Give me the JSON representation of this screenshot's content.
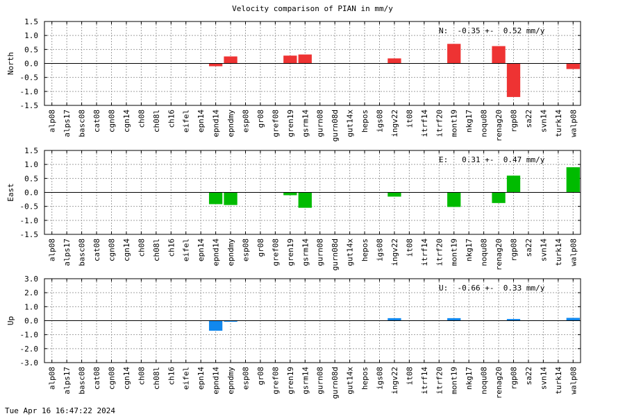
{
  "title": "Velocity comparison of PIAN in mm/y",
  "timestamp": "Tue Apr 16 16:47:22 2024",
  "chart_data": [
    {
      "type": "bar",
      "ylabel": "North",
      "annotation": "N:  -0.35 +-  0.52 mm/y",
      "color": "#ee3333",
      "ylim": [
        -1.5,
        1.5
      ],
      "yticks": [
        "-1.5",
        "-1.0",
        "-0.5",
        "0.0",
        "0.5",
        "1.0",
        "1.5"
      ],
      "grid": true,
      "categories": [
        "alp08",
        "alps17",
        "basc08",
        "cat08",
        "cgn08",
        "cgn14",
        "ch08",
        "ch08l",
        "ch16",
        "eifel",
        "epn14",
        "epnd14",
        "epndmy",
        "esp08",
        "gr08",
        "gref08",
        "gren19",
        "gsrm14",
        "gurn08",
        "gurn08d",
        "gut14x",
        "hepos",
        "igs08",
        "ingv22",
        "it08",
        "itrf14",
        "itrf20",
        "mont19",
        "nkg17",
        "noqu08",
        "renag20",
        "rgp08",
        "sa22",
        "svn14",
        "turk14",
        "walp08"
      ],
      "values": [
        0,
        0,
        0,
        0,
        0,
        0,
        0,
        0,
        0,
        0,
        0,
        -0.1,
        0.25,
        0,
        0,
        0,
        0.28,
        0.32,
        0,
        0,
        0,
        0,
        0,
        0.18,
        0,
        0,
        0,
        0.7,
        0,
        0,
        0.62,
        -1.2,
        0,
        0,
        0,
        -0.2
      ]
    },
    {
      "type": "bar",
      "ylabel": "East",
      "annotation": "E:   0.31 +-  0.47 mm/y",
      "color": "#00bb00",
      "ylim": [
        -1.5,
        1.5
      ],
      "yticks": [
        "-1.5",
        "-1.0",
        "-0.5",
        "0.0",
        "0.5",
        "1.0",
        "1.5"
      ],
      "grid": true,
      "categories": [
        "alp08",
        "alps17",
        "basc08",
        "cat08",
        "cgn08",
        "cgn14",
        "ch08",
        "ch08l",
        "ch16",
        "eifel",
        "epn14",
        "epnd14",
        "epndmy",
        "esp08",
        "gr08",
        "gref08",
        "gren19",
        "gsrm14",
        "gurn08",
        "gurn08d",
        "gut14x",
        "hepos",
        "igs08",
        "ingv22",
        "it08",
        "itrf14",
        "itrf20",
        "mont19",
        "nkg17",
        "noqu08",
        "renag20",
        "rgp08",
        "sa22",
        "svn14",
        "turk14",
        "walp08"
      ],
      "values": [
        0,
        0,
        0,
        0,
        0,
        0,
        0,
        0,
        0,
        0,
        0,
        -0.42,
        -0.45,
        0,
        0,
        0,
        -0.1,
        -0.55,
        0,
        0,
        0,
        0,
        0,
        -0.15,
        0,
        0,
        0,
        -0.52,
        0,
        0,
        -0.38,
        0.6,
        0,
        0,
        0,
        0.9
      ]
    },
    {
      "type": "bar",
      "ylabel": "Up",
      "annotation": "U:  -0.66 +-  0.33 mm/y",
      "color": "#1188ee",
      "ylim": [
        -3.0,
        3.0
      ],
      "yticks": [
        "-3.0",
        "-2.0",
        "-1.0",
        "0.0",
        "1.0",
        "2.0",
        "3.0"
      ],
      "grid": true,
      "categories": [
        "alp08",
        "alps17",
        "basc08",
        "cat08",
        "cgn08",
        "cgn14",
        "ch08",
        "ch08l",
        "ch16",
        "eifel",
        "epn14",
        "epnd14",
        "epndmy",
        "esp08",
        "gr08",
        "gref08",
        "gren19",
        "gsrm14",
        "gurn08",
        "gurn08d",
        "gut14x",
        "hepos",
        "igs08",
        "ingv22",
        "it08",
        "itrf14",
        "itrf20",
        "mont19",
        "nkg17",
        "noqu08",
        "renag20",
        "rgp08",
        "sa22",
        "svn14",
        "turk14",
        "walp08"
      ],
      "values": [
        0,
        0,
        0,
        0,
        0,
        0,
        0,
        0,
        0,
        0,
        0,
        -0.72,
        -0.08,
        0,
        0,
        0,
        0,
        0,
        0,
        0,
        0,
        0,
        0,
        0.18,
        0,
        0,
        0,
        0.18,
        0,
        0,
        0,
        0.12,
        0,
        0,
        0,
        0.2
      ]
    }
  ]
}
